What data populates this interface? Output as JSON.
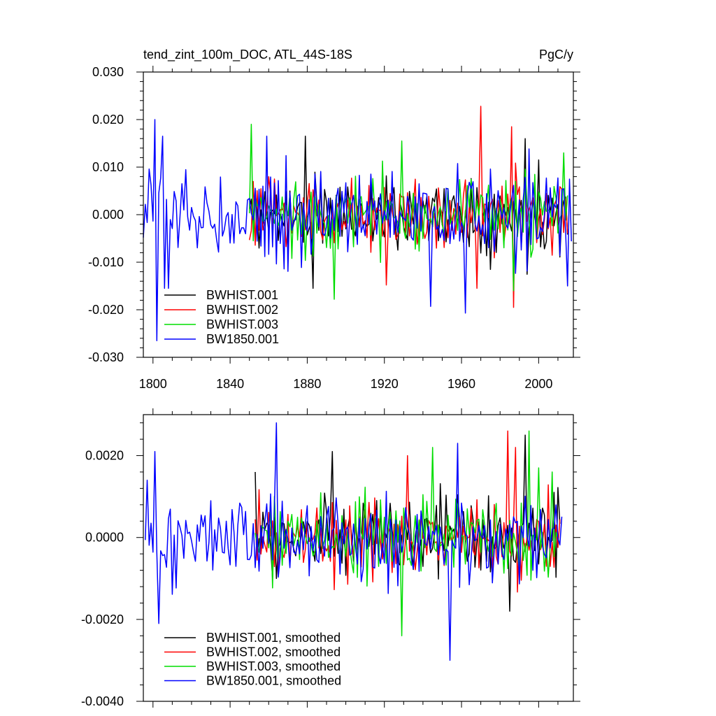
{
  "chart_data": [
    {
      "type": "line",
      "title": "tend_zint_100m_DOC, ATL_44S-18S",
      "units": "PgC/y",
      "xlabel": "",
      "ylabel": "",
      "xlim": [
        1795,
        2018
      ],
      "ylim": [
        -0.03,
        0.03
      ],
      "xticks": [
        1800,
        1840,
        1880,
        1920,
        1960,
        2000
      ],
      "xtick_labels": [
        "1800",
        "1840",
        "1880",
        "1920",
        "1960",
        "2000"
      ],
      "yticks": [
        -0.03,
        -0.02,
        -0.01,
        0,
        0.01,
        0.02,
        0.03
      ],
      "ytick_labels": [
        "-0.030",
        "-0.020",
        "-0.010",
        "0.000",
        "0.010",
        "0.020",
        "0.030"
      ],
      "grid": false,
      "legend_position": "bottom-left",
      "series": [
        {
          "name": "BWHIST.001",
          "color": "#000000",
          "start": 1850,
          "end": 2015,
          "amplitude": 0.0065,
          "seed": 11,
          "spikes": [
            [
              1879,
              0.0165
            ],
            [
              1883,
              -0.0155
            ],
            [
              1993,
              0.016
            ],
            [
              2000,
              0.0115
            ]
          ]
        },
        {
          "name": "BWHIST.002",
          "color": "#ff0000",
          "start": 1850,
          "end": 2015,
          "amplitude": 0.0065,
          "seed": 23,
          "spikes": [
            [
              1970,
              0.0228
            ],
            [
              1986,
              0.0185
            ],
            [
              1987,
              -0.0195
            ],
            [
              1968,
              -0.0155
            ],
            [
              1921,
              -0.0148
            ]
          ]
        },
        {
          "name": "BWHIST.003",
          "color": "#00dd00",
          "start": 1850,
          "end": 2015,
          "amplitude": 0.0065,
          "seed": 37,
          "spikes": [
            [
              1851,
              0.019
            ],
            [
              1894,
              -0.0178
            ],
            [
              1929,
              0.0155
            ],
            [
              1987,
              -0.016
            ],
            [
              2013,
              0.013
            ]
          ]
        },
        {
          "name": "BW1850.001",
          "color": "#0000ff",
          "start": 1795,
          "end": 2017,
          "amplitude": 0.0075,
          "seed": 53,
          "spikes": [
            [
              1801,
              0.02
            ],
            [
              1802,
              -0.0265
            ],
            [
              1805,
              0.0165
            ],
            [
              1806,
              -0.0155
            ],
            [
              1808,
              -0.0155
            ],
            [
              1859,
              0.0165
            ],
            [
              1944,
              -0.0193
            ],
            [
              1962,
              -0.0207
            ],
            [
              2015,
              -0.015
            ]
          ]
        }
      ]
    },
    {
      "type": "line",
      "title": "",
      "units": "",
      "xlabel": "",
      "ylabel": "",
      "xlim": [
        1795,
        2018
      ],
      "ylim": [
        -0.004,
        0.003
      ],
      "xticks": [
        1800,
        1840,
        1880,
        1920,
        1960,
        2000
      ],
      "xtick_labels": [
        "",
        "",
        "",
        "",
        "",
        ""
      ],
      "yticks": [
        -0.004,
        -0.002,
        0,
        0.002
      ],
      "ytick_labels": [
        "-0.0040",
        "-0.0020",
        "0.0000",
        "0.0020"
      ],
      "grid": false,
      "legend_position": "bottom-left",
      "series": [
        {
          "name": "BWHIST.001, smoothed",
          "color": "#000000",
          "start": 1853,
          "end": 2011,
          "amplitude": 0.0008,
          "seed": 71,
          "spikes": [
            [
              1853,
              0.0016
            ],
            [
              1893,
              0.0021
            ],
            [
              1985,
              -0.0018
            ],
            [
              1993,
              0.0025
            ]
          ]
        },
        {
          "name": "BWHIST.002, smoothed",
          "color": "#ff0000",
          "start": 1853,
          "end": 2011,
          "amplitude": 0.0008,
          "seed": 89,
          "spikes": [
            [
              1932,
              0.002
            ],
            [
              1984,
              0.0026
            ],
            [
              1988,
              0.0022
            ]
          ]
        },
        {
          "name": "BWHIST.003, smoothed",
          "color": "#00dd00",
          "start": 1853,
          "end": 2011,
          "amplitude": 0.0008,
          "seed": 97,
          "spikes": [
            [
              1929,
              -0.0024
            ],
            [
              1945,
              0.0022
            ],
            [
              1995,
              0.0026
            ],
            [
              2000,
              0.0017
            ],
            [
              2007,
              0.0016
            ]
          ]
        },
        {
          "name": "BW1850.001, smoothed",
          "color": "#0000ff",
          "start": 1796,
          "end": 2012,
          "amplitude": 0.0009,
          "seed": 101,
          "spikes": [
            [
              1797,
              0.0014
            ],
            [
              1801,
              0.0021
            ],
            [
              1803,
              -0.0021
            ],
            [
              1864,
              0.0028
            ],
            [
              1954,
              -0.003
            ],
            [
              1958,
              0.0023
            ]
          ]
        }
      ]
    }
  ]
}
